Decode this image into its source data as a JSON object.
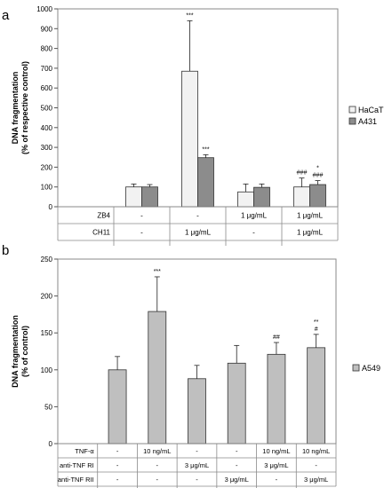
{
  "chart_data": [
    {
      "panel": "a",
      "type": "bar",
      "ylabel": [
        "DNA fragmentation",
        "(% of respective control)"
      ],
      "ylim": [
        0,
        1000
      ],
      "yticks": [
        0,
        100,
        200,
        300,
        400,
        500,
        600,
        700,
        800,
        900,
        1000
      ],
      "grid": false,
      "legend_position": "right",
      "series": [
        {
          "name": "HaCaT",
          "color": "#f2f2f2",
          "values": [
            0,
            100,
            685,
            75,
            100
          ],
          "errors": [
            0,
            15,
            255,
            40,
            45
          ],
          "annotations": [
            "",
            "",
            "***",
            "",
            "###"
          ]
        },
        {
          "name": "A431",
          "color": "#8c8c8c",
          "values": [
            0,
            100,
            248,
            98,
            112
          ],
          "errors": [
            0,
            12,
            15,
            17,
            20
          ],
          "annotations": [
            "",
            "",
            "***",
            "",
            "*\n###"
          ]
        }
      ],
      "condition_table": [
        {
          "label": "ZB4",
          "values": [
            "",
            "-",
            "-",
            "1 μg/mL",
            "1 μg/mL"
          ]
        },
        {
          "label": "CH11",
          "values": [
            "",
            "-",
            "1 μg/mL",
            "-",
            "1 μg/mL"
          ]
        }
      ]
    },
    {
      "panel": "b",
      "type": "bar",
      "ylabel": [
        "DNA fragmentation",
        "(% of control)"
      ],
      "ylim": [
        0,
        250
      ],
      "yticks": [
        0,
        50,
        100,
        150,
        200,
        250
      ],
      "grid": false,
      "legend_position": "right",
      "series": [
        {
          "name": "A549",
          "color": "#bfbfbf",
          "values": [
            0,
            100,
            179,
            88,
            109,
            121,
            130
          ],
          "errors": [
            0,
            18,
            47,
            18,
            24,
            16,
            18
          ],
          "annotations": [
            "",
            "",
            "***",
            "",
            "",
            "##",
            "**\n#"
          ]
        }
      ],
      "condition_table": [
        {
          "label": "TNF-α",
          "values": [
            "",
            "-",
            "10 ng/mL",
            "-",
            "-",
            "10 ng/mL",
            "10 ng/mL"
          ]
        },
        {
          "label": "anti-TNF RI",
          "values": [
            "",
            "-",
            "-",
            "3 μg/mL",
            "-",
            "3 μg/mL",
            "-"
          ]
        },
        {
          "label": "anti-TNF RII",
          "values": [
            "",
            "-",
            "-",
            "-",
            "3 μg/mL",
            "-",
            "3 μg/mL"
          ]
        }
      ]
    }
  ]
}
